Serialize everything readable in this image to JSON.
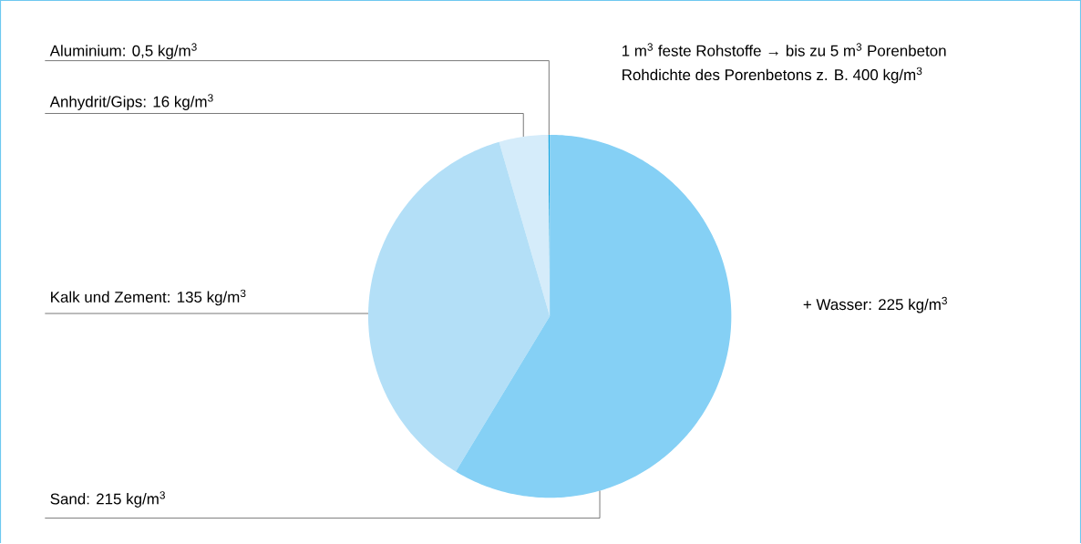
{
  "chart_data": {
    "type": "pie",
    "categories": [
      "Aluminium: 0,5 kg/m$^{3}$",
      "Anhydrit/Gips: 16 kg/m$^{3}$",
      "Kalk und Zement: 135 kg/m$^{3}$",
      "Sand: 215 kg/m$^{3}$"
    ],
    "values": [
      0.5,
      16,
      135,
      215
    ],
    "colors": [
      "#1aa7e0",
      "#d5ecfa",
      "#b3dff7",
      "#85d0f5"
    ],
    "annotations": [
      "1 m$^{3}$  feste Rohstoffe → bis zu 5 m$^{3}$ Porenbeton",
      "Rohdichte des Porenbetons z. B. 400 kg/m$^{3}$",
      "+ Wasser: 225 kg/m$^{3}$"
    ]
  }
}
